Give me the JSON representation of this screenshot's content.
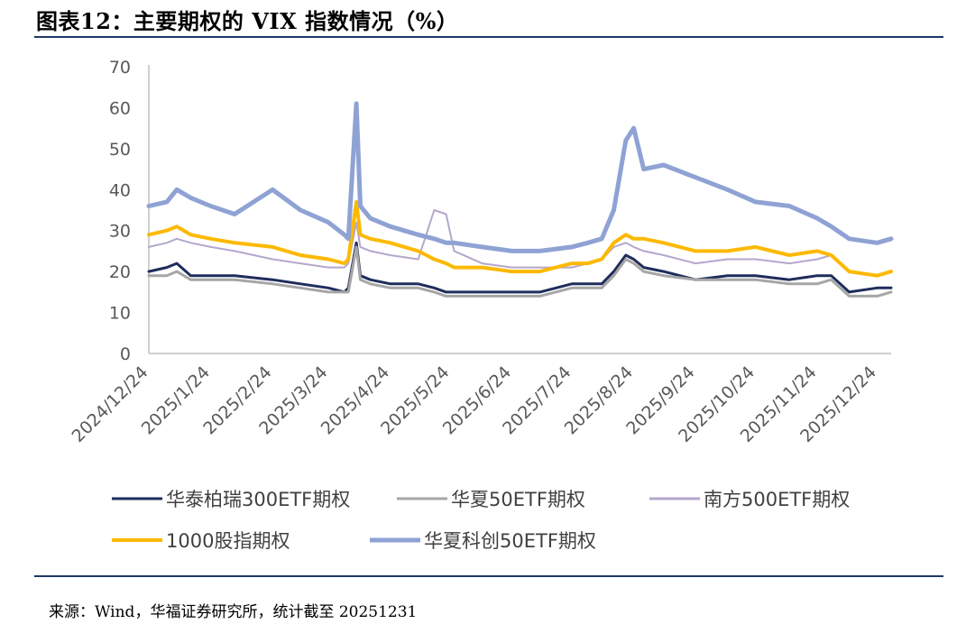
{
  "header": {
    "title": "图表12：主要期权的 VIX 指数情况（%）"
  },
  "footer": {
    "source": "来源：Wind，华福证券研究所，统计截至 20251231"
  },
  "chart_data": {
    "type": "line",
    "title": "图表12：主要期权的 VIX 指数情况（%）",
    "xlabel": "",
    "ylabel": "",
    "ylim": [
      0,
      70
    ],
    "yticks": [
      "0",
      "10",
      "20",
      "30",
      "40",
      "50",
      "60",
      "70"
    ],
    "xticks": [
      "2024/12/24",
      "2025/1/24",
      "2025/2/24",
      "2025/3/24",
      "2025/4/24",
      "2025/5/24",
      "2025/6/24",
      "2025/7/24",
      "2025/8/24",
      "2025/9/24",
      "2025/10/24",
      "2025/11/24",
      "2025/12/24"
    ],
    "grid": false,
    "legend_position": "bottom",
    "x_domain": [
      "2024/12/24",
      "2025/12/31"
    ],
    "x": [
      "2024/12/24",
      "2025/1/2",
      "2025/1/7",
      "2025/1/14",
      "2025/1/24",
      "2025/2/5",
      "2025/2/24",
      "2025/3/10",
      "2025/3/24",
      "2025/4/1",
      "2025/4/3",
      "2025/4/7",
      "2025/4/9",
      "2025/4/14",
      "2025/4/24",
      "2025/5/8",
      "2025/5/16",
      "2025/5/22",
      "2025/5/26",
      "2025/6/9",
      "2025/6/24",
      "2025/7/8",
      "2025/7/24",
      "2025/8/1",
      "2025/8/8",
      "2025/8/14",
      "2025/8/20",
      "2025/8/24",
      "2025/8/29",
      "2025/9/8",
      "2025/9/24",
      "2025/10/10",
      "2025/10/24",
      "2025/11/10",
      "2025/11/24",
      "2025/12/1",
      "2025/12/10",
      "2025/12/24",
      "2025/12/31"
    ],
    "series": [
      {
        "name": "华泰柏瑞300ETF期权",
        "color": "#1f2d5c",
        "width": 3,
        "values": [
          20,
          21,
          22,
          19,
          19,
          19,
          18,
          17,
          16,
          15,
          16,
          27,
          19,
          18,
          17,
          17,
          16,
          15,
          15,
          15,
          15,
          15,
          17,
          17,
          17,
          20,
          24,
          23,
          21,
          20,
          18,
          19,
          19,
          18,
          19,
          19,
          15,
          16,
          16
        ]
      },
      {
        "name": "华夏50ETF期权",
        "color": "#a6a6a6",
        "width": 3,
        "values": [
          19,
          19,
          20,
          18,
          18,
          18,
          17,
          16,
          15,
          15,
          15,
          26,
          18,
          17,
          16,
          16,
          15,
          14,
          14,
          14,
          14,
          14,
          16,
          16,
          16,
          19,
          23,
          22,
          20,
          19,
          18,
          18,
          18,
          17,
          17,
          18,
          14,
          14,
          15
        ]
      },
      {
        "name": "南方500ETF期权",
        "color": "#b4a7cc",
        "width": 2,
        "values": [
          26,
          27,
          28,
          27,
          26,
          25,
          23,
          22,
          21,
          21,
          22,
          32,
          26,
          25,
          24,
          23,
          35,
          34,
          25,
          22,
          21,
          21,
          21,
          22,
          23,
          26,
          27,
          26,
          25,
          24,
          22,
          23,
          23,
          22,
          23,
          24,
          20,
          19,
          20
        ]
      },
      {
        "name": "1000股指期权",
        "color": "#fcb900",
        "width": 4,
        "values": [
          29,
          30,
          31,
          29,
          28,
          27,
          26,
          24,
          23,
          22,
          23,
          37,
          29,
          28,
          27,
          25,
          23,
          22,
          21,
          21,
          20,
          20,
          22,
          22,
          23,
          27,
          29,
          28,
          28,
          27,
          25,
          25,
          26,
          24,
          25,
          24,
          20,
          19,
          20
        ]
      },
      {
        "name": "华夏科创50ETF期权",
        "color": "#8fa2d4",
        "width": 5,
        "values": [
          36,
          37,
          40,
          38,
          36,
          34,
          40,
          35,
          32,
          29,
          28,
          61,
          36,
          33,
          31,
          29,
          28,
          27,
          27,
          26,
          25,
          25,
          26,
          27,
          28,
          35,
          52,
          55,
          45,
          46,
          43,
          40,
          37,
          36,
          33,
          31,
          28,
          27,
          28
        ]
      }
    ]
  }
}
